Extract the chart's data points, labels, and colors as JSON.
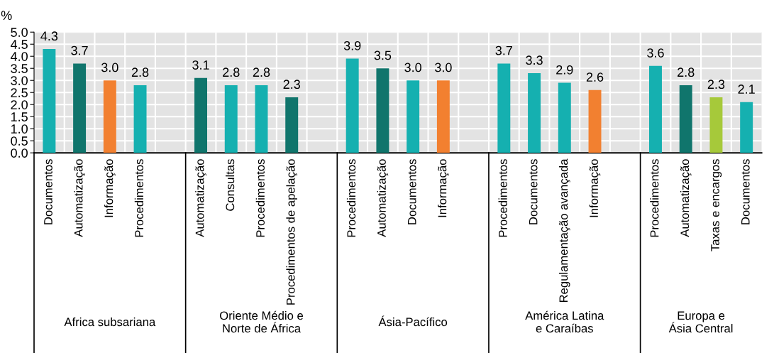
{
  "chart_data": {
    "type": "bar",
    "ylabel": "%",
    "categories": [
      "Documentos",
      "Automatização",
      "Informação",
      "Procedimentos",
      null,
      "Automatização",
      "Consultas",
      "Procedimentos",
      "Procedimentos de apelação",
      null,
      "Procedimentos",
      "Automatização",
      "Documentos",
      "Informação",
      null,
      "Procedimentos",
      "Documentos",
      "Regulamentação avançada",
      "Informação",
      null,
      "Procedimentos",
      "Automatização",
      "Taxas e encargos",
      "Documentos"
    ],
    "values": [
      4.3,
      3.7,
      3.0,
      2.8,
      null,
      3.1,
      2.8,
      2.8,
      2.3,
      null,
      3.9,
      3.5,
      3.0,
      3.0,
      null,
      3.7,
      3.3,
      2.9,
      2.6,
      null,
      3.6,
      2.8,
      2.3,
      2.1
    ],
    "value_labels": [
      "4.3",
      "3.7",
      "3.0",
      "2.8",
      null,
      "3.1",
      "2.8",
      "2.8",
      "2.3",
      null,
      "3.9",
      "3.5",
      "3.0",
      "3.0",
      null,
      "3.7",
      "3.3",
      "2.9",
      "2.6",
      null,
      "3.6",
      "2.8",
      "2.3",
      "2.1"
    ],
    "colors": [
      "#15b0b0",
      "#10756c",
      "#f28030",
      "#15b0b0",
      null,
      "#10756c",
      "#15b0b0",
      "#15b0b0",
      "#10756c",
      null,
      "#15b0b0",
      "#10756c",
      "#15b0b0",
      "#f28030",
      null,
      "#15b0b0",
      "#15b0b0",
      "#15b0b0",
      "#f28030",
      null,
      "#15b0b0",
      "#10756c",
      "#a6c93a",
      "#15b0b0"
    ],
    "annotations": [
      "Africa subsariana",
      "Oriente Médio e Norte de África",
      "Ásia-Pacífico",
      "América Latina e Caraíbas",
      "Europa e Ásia Central"
    ],
    "ylim": [
      0,
      5
    ],
    "yticks": [
      {
        "value": 0,
        "label": "0.0"
      },
      {
        "value": 0.5,
        "label": "0.5"
      },
      {
        "value": 1,
        "label": "1.0"
      },
      {
        "value": 1.5,
        "label": "1.5"
      },
      {
        "value": 2,
        "label": "2.0"
      },
      {
        "value": 2.5,
        "label": "2.5"
      },
      {
        "value": 3,
        "label": "3.0"
      },
      {
        "value": 3.5,
        "label": "3.5"
      },
      {
        "value": 4,
        "label": "4.0"
      },
      {
        "value": 4.5,
        "label": "4.5"
      },
      {
        "value": 5,
        "label": "5.0"
      }
    ],
    "grid": true
  }
}
